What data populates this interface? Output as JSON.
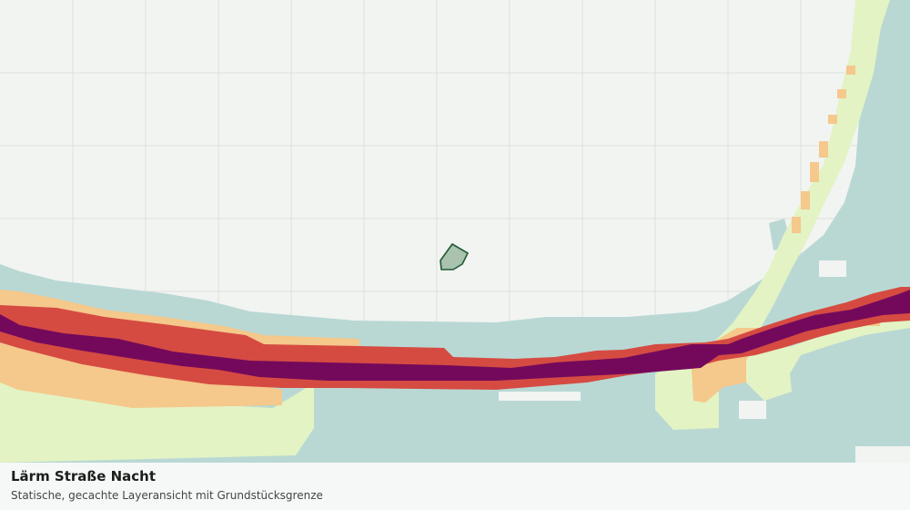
{
  "map": {
    "caption": {
      "title": "Lärm Straße Nacht",
      "subtitle": "Statische, gecachte Layeransicht mit Grundstücksgrenze"
    },
    "colors": {
      "background": "#f2f4f2",
      "grid": "#dcdfdc",
      "noise_class_1": "#b9d8d4",
      "noise_class_2": "#e3f3c4",
      "noise_class_3": "#f5c88b",
      "noise_class_4": "#d54b42",
      "noise_class_5": "#74095c",
      "parcel_fill": "#a9c3b0",
      "parcel_stroke": "#1f5a32"
    }
  }
}
